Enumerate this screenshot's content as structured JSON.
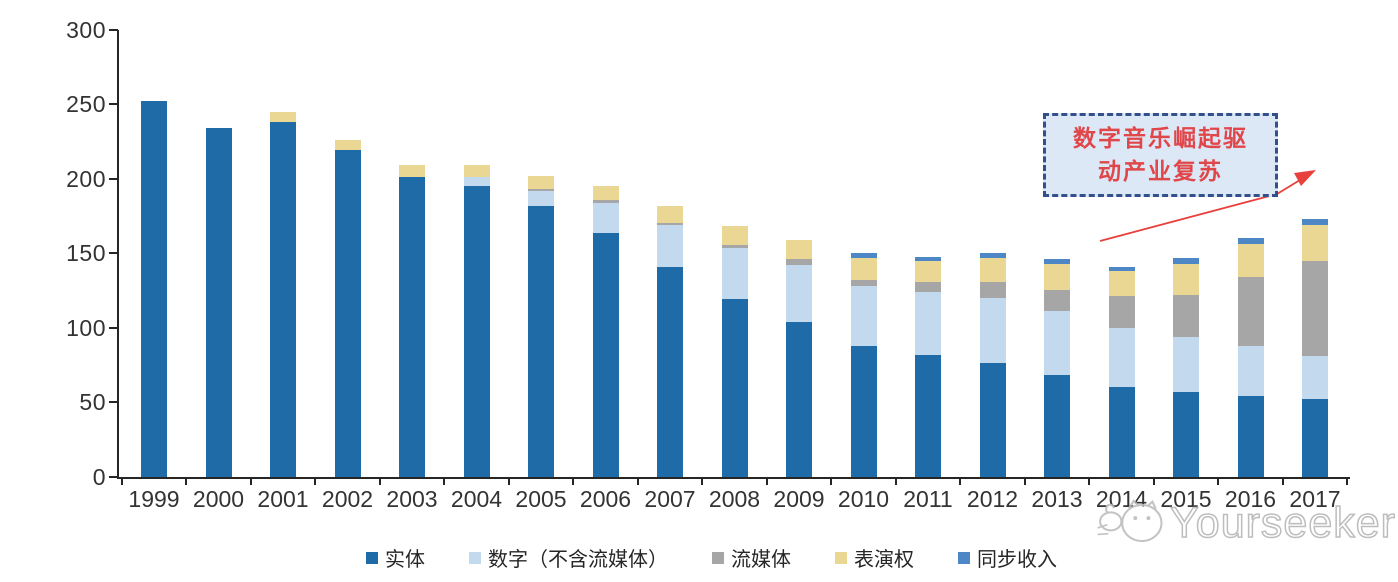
{
  "chart_data": {
    "type": "bar",
    "stacked": true,
    "title": "",
    "xlabel": "",
    "ylabel": "",
    "categories": [
      "1999",
      "2000",
      "2001",
      "2002",
      "2003",
      "2004",
      "2005",
      "2006",
      "2007",
      "2008",
      "2009",
      "2010",
      "2011",
      "2012",
      "2013",
      "2014",
      "2015",
      "2016",
      "2017"
    ],
    "series": [
      {
        "name": "实体",
        "color": "#1F6BA8",
        "values": [
          252,
          234,
          238,
          219.5,
          201,
          195,
          182,
          163.5,
          141,
          119,
          104,
          88,
          81.5,
          76,
          68,
          60,
          57,
          54,
          52
        ]
      },
      {
        "name": "数字（不含流媒体）",
        "color": "#C3D9EE",
        "values": [
          0,
          0,
          0,
          0,
          0,
          6.5,
          10,
          20,
          28,
          34.5,
          38,
          40,
          42.5,
          44,
          43,
          40,
          37,
          34,
          29
        ]
      },
      {
        "name": "流媒体",
        "color": "#A6A6A6",
        "values": [
          0,
          0,
          0,
          0,
          0,
          0,
          1,
          2,
          1.5,
          2,
          4,
          4,
          7,
          10.5,
          14,
          21,
          28,
          46,
          64
        ]
      },
      {
        "name": "表演权",
        "color": "#E9D793",
        "values": [
          0,
          0,
          7,
          6.5,
          8.5,
          7.5,
          9,
          10,
          11.5,
          13,
          13,
          15,
          14,
          16.5,
          18,
          17,
          21,
          22,
          24
        ]
      },
      {
        "name": "同步收入",
        "color": "#4E87C5",
        "values": [
          0,
          0,
          0,
          0,
          0,
          0,
          0,
          0,
          0,
          0,
          0,
          3,
          2.5,
          3,
          3,
          3,
          4,
          4,
          4
        ]
      }
    ],
    "ylim": [
      0,
      300
    ],
    "yticks": [
      0,
      50,
      100,
      150,
      200,
      250,
      300
    ],
    "grid": false,
    "legend_position": "bottom"
  },
  "annotation": {
    "line1": "数字音乐崛起驱",
    "line2": "动产业复苏",
    "text_color": "#E0474B",
    "border_color": "#33508C",
    "fill_color": "#DCE8F5",
    "arrow_color": "#E8403C"
  },
  "watermark": {
    "text": "Yourseeker",
    "icon": "cat-logo-icon"
  },
  "axis": {
    "line_color": "#262626",
    "label_color": "#333333"
  }
}
